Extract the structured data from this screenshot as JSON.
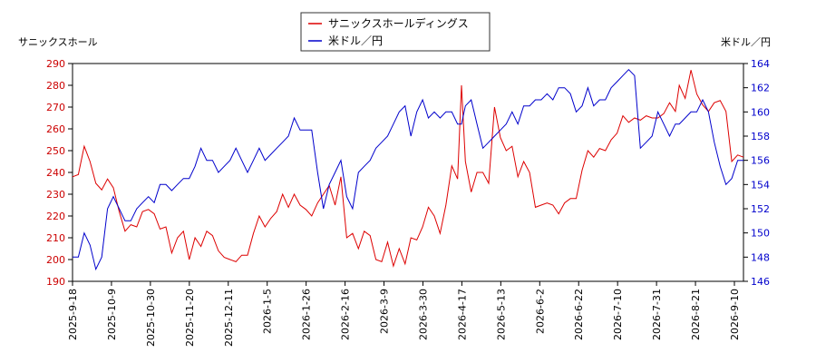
{
  "chart_data": {
    "type": "line",
    "grid": false,
    "legend_position": "top-center",
    "ylabel_left": "サニックスホール",
    "ylabel_right": "米ドル／円",
    "x_tick_labels": [
      "2025-9-18",
      "2025-10-9",
      "2025-10-30",
      "2025-11-20",
      "2025-12-11",
      "2026-1-5",
      "2026-1-26",
      "2026-2-16",
      "2026-3-9",
      "2026-3-30",
      "2026-4-17",
      "2026-5-13",
      "2026-6-2",
      "2026-6-22",
      "2026-7-10",
      "2026-7-31",
      "2026-8-21",
      "2026-9-10"
    ],
    "y_left": {
      "min": 190,
      "max": 290,
      "ticks": [
        190,
        200,
        210,
        220,
        230,
        240,
        250,
        260,
        270,
        280,
        290
      ]
    },
    "y_right": {
      "min": 146,
      "max": 164,
      "ticks": [
        146,
        148,
        150,
        152,
        154,
        156,
        158,
        160,
        162,
        164
      ]
    },
    "series": [
      {
        "name": "サニックスホールディングス",
        "color": "#dd0000",
        "axis": "left",
        "values": [
          [
            0,
            238
          ],
          [
            3,
            239
          ],
          [
            6,
            252
          ],
          [
            9,
            245
          ],
          [
            12,
            235
          ],
          [
            15,
            232
          ],
          [
            18,
            237
          ],
          [
            21,
            233
          ],
          [
            24,
            222
          ],
          [
            27,
            213
          ],
          [
            30,
            216
          ],
          [
            33,
            215
          ],
          [
            36,
            222
          ],
          [
            39,
            223
          ],
          [
            42,
            221
          ],
          [
            45,
            214
          ],
          [
            48,
            215
          ],
          [
            51,
            203
          ],
          [
            54,
            210
          ],
          [
            57,
            213
          ],
          [
            60,
            200
          ],
          [
            63,
            210
          ],
          [
            66,
            206
          ],
          [
            69,
            213
          ],
          [
            72,
            211
          ],
          [
            75,
            204
          ],
          [
            78,
            201
          ],
          [
            81,
            200
          ],
          [
            84,
            199
          ],
          [
            87,
            202
          ],
          [
            90,
            202
          ],
          [
            93,
            212
          ],
          [
            96,
            220
          ],
          [
            99,
            215
          ],
          [
            102,
            219
          ],
          [
            105,
            222
          ],
          [
            108,
            230
          ],
          [
            111,
            224
          ],
          [
            114,
            230
          ],
          [
            117,
            225
          ],
          [
            120,
            223
          ],
          [
            123,
            220
          ],
          [
            126,
            226
          ],
          [
            129,
            230
          ],
          [
            132,
            234
          ],
          [
            135,
            225
          ],
          [
            138,
            238
          ],
          [
            141,
            210
          ],
          [
            144,
            212
          ],
          [
            147,
            205
          ],
          [
            150,
            213
          ],
          [
            153,
            211
          ],
          [
            156,
            200
          ],
          [
            159,
            199
          ],
          [
            162,
            208
          ],
          [
            165,
            197
          ],
          [
            168,
            205
          ],
          [
            171,
            198
          ],
          [
            174,
            210
          ],
          [
            177,
            209
          ],
          [
            180,
            215
          ],
          [
            183,
            224
          ],
          [
            186,
            220
          ],
          [
            189,
            212
          ],
          [
            192,
            225
          ],
          [
            195,
            243
          ],
          [
            198,
            237
          ],
          [
            200,
            280
          ],
          [
            202,
            245
          ],
          [
            205,
            231
          ],
          [
            208,
            240
          ],
          [
            211,
            240
          ],
          [
            214,
            235
          ],
          [
            217,
            270
          ],
          [
            220,
            256
          ],
          [
            223,
            250
          ],
          [
            226,
            252
          ],
          [
            229,
            238
          ],
          [
            232,
            245
          ],
          [
            235,
            240
          ],
          [
            238,
            224
          ],
          [
            241,
            225
          ],
          [
            244,
            226
          ],
          [
            247,
            225
          ],
          [
            250,
            221
          ],
          [
            253,
            226
          ],
          [
            256,
            228
          ],
          [
            259,
            228
          ],
          [
            262,
            241
          ],
          [
            265,
            250
          ],
          [
            268,
            247
          ],
          [
            271,
            251
          ],
          [
            274,
            250
          ],
          [
            277,
            255
          ],
          [
            280,
            258
          ],
          [
            283,
            266
          ],
          [
            286,
            263
          ],
          [
            289,
            265
          ],
          [
            292,
            264
          ],
          [
            295,
            266
          ],
          [
            298,
            265
          ],
          [
            301,
            265
          ],
          [
            304,
            267
          ],
          [
            307,
            272
          ],
          [
            310,
            268
          ],
          [
            312,
            280
          ],
          [
            315,
            274
          ],
          [
            318,
            287
          ],
          [
            321,
            276
          ],
          [
            324,
            271
          ],
          [
            327,
            268
          ],
          [
            330,
            272
          ],
          [
            333,
            273
          ],
          [
            336,
            268
          ],
          [
            339,
            245
          ],
          [
            342,
            248
          ],
          [
            345,
            247
          ]
        ]
      },
      {
        "name": "米ドル／円",
        "color": "#0000cc",
        "axis": "right",
        "values": [
          [
            0,
            148
          ],
          [
            3,
            148
          ],
          [
            6,
            150
          ],
          [
            9,
            149
          ],
          [
            12,
            147
          ],
          [
            15,
            148
          ],
          [
            18,
            152
          ],
          [
            21,
            153
          ],
          [
            24,
            152
          ],
          [
            27,
            151
          ],
          [
            30,
            151
          ],
          [
            33,
            152
          ],
          [
            36,
            152.5
          ],
          [
            39,
            153
          ],
          [
            42,
            152.5
          ],
          [
            45,
            154
          ],
          [
            48,
            154
          ],
          [
            51,
            153.5
          ],
          [
            54,
            154
          ],
          [
            57,
            154.5
          ],
          [
            60,
            154.5
          ],
          [
            63,
            155.5
          ],
          [
            66,
            157
          ],
          [
            69,
            156
          ],
          [
            72,
            156
          ],
          [
            75,
            155
          ],
          [
            78,
            155.5
          ],
          [
            81,
            156
          ],
          [
            84,
            157
          ],
          [
            87,
            156
          ],
          [
            90,
            155
          ],
          [
            93,
            156
          ],
          [
            96,
            157
          ],
          [
            99,
            156
          ],
          [
            102,
            156.5
          ],
          [
            105,
            157
          ],
          [
            108,
            157.5
          ],
          [
            111,
            158
          ],
          [
            114,
            159.5
          ],
          [
            117,
            158.5
          ],
          [
            120,
            158.5
          ],
          [
            123,
            158.5
          ],
          [
            126,
            155
          ],
          [
            129,
            152
          ],
          [
            132,
            154
          ],
          [
            135,
            155
          ],
          [
            138,
            156
          ],
          [
            141,
            153
          ],
          [
            144,
            152
          ],
          [
            147,
            155
          ],
          [
            150,
            155.5
          ],
          [
            153,
            156
          ],
          [
            156,
            157
          ],
          [
            159,
            157.5
          ],
          [
            162,
            158
          ],
          [
            165,
            159
          ],
          [
            168,
            160
          ],
          [
            171,
            160.5
          ],
          [
            174,
            158
          ],
          [
            177,
            160
          ],
          [
            180,
            161
          ],
          [
            183,
            159.5
          ],
          [
            186,
            160
          ],
          [
            189,
            159.5
          ],
          [
            192,
            160
          ],
          [
            195,
            160
          ],
          [
            198,
            159
          ],
          [
            200,
            159
          ],
          [
            202,
            160.5
          ],
          [
            205,
            161
          ],
          [
            208,
            159
          ],
          [
            211,
            157
          ],
          [
            214,
            157.5
          ],
          [
            217,
            158
          ],
          [
            220,
            158.5
          ],
          [
            223,
            159
          ],
          [
            226,
            160
          ],
          [
            229,
            159
          ],
          [
            232,
            160.5
          ],
          [
            235,
            160.5
          ],
          [
            238,
            161
          ],
          [
            241,
            161
          ],
          [
            244,
            161.5
          ],
          [
            247,
            161
          ],
          [
            250,
            162
          ],
          [
            253,
            162
          ],
          [
            256,
            161.5
          ],
          [
            259,
            160
          ],
          [
            262,
            160.5
          ],
          [
            265,
            162
          ],
          [
            268,
            160.5
          ],
          [
            271,
            161
          ],
          [
            274,
            161
          ],
          [
            277,
            162
          ],
          [
            280,
            162.5
          ],
          [
            283,
            163
          ],
          [
            286,
            163.5
          ],
          [
            289,
            163
          ],
          [
            292,
            157
          ],
          [
            295,
            157.5
          ],
          [
            298,
            158
          ],
          [
            301,
            160
          ],
          [
            304,
            159
          ],
          [
            307,
            158
          ],
          [
            310,
            159
          ],
          [
            312,
            159
          ],
          [
            315,
            159.5
          ],
          [
            318,
            160
          ],
          [
            321,
            160
          ],
          [
            324,
            161
          ],
          [
            327,
            160
          ],
          [
            330,
            157.5
          ],
          [
            333,
            155.5
          ],
          [
            336,
            154
          ],
          [
            339,
            154.5
          ],
          [
            342,
            156
          ],
          [
            345,
            156
          ]
        ]
      }
    ]
  }
}
